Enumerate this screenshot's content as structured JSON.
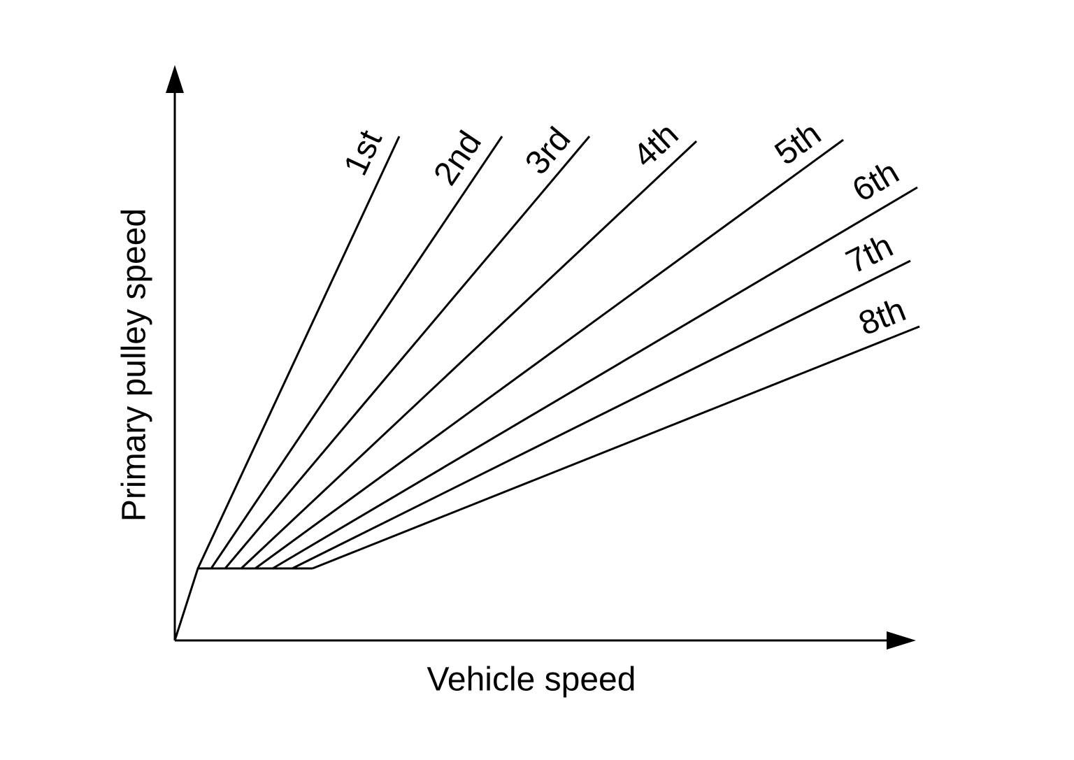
{
  "axes": {
    "x_label": "Vehicle speed",
    "y_label": "Primary pulley speed"
  },
  "gears": [
    "1st",
    "2nd",
    "3rd",
    "4th",
    "5th",
    "6th",
    "7th",
    "8th"
  ]
}
